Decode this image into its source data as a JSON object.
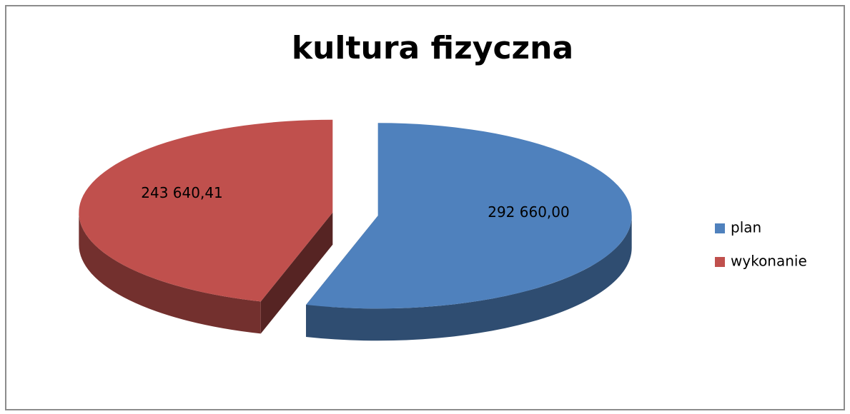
{
  "chart_data": {
    "type": "pie",
    "title": "kultura fizyczna",
    "categories": [
      "plan",
      "wykonanie"
    ],
    "values": [
      292660,
      243640.41
    ],
    "value_labels": [
      "292 660,00",
      "243 640,41"
    ],
    "colors": [
      "#4f81bd",
      "#c0504d"
    ],
    "legend": "right"
  }
}
